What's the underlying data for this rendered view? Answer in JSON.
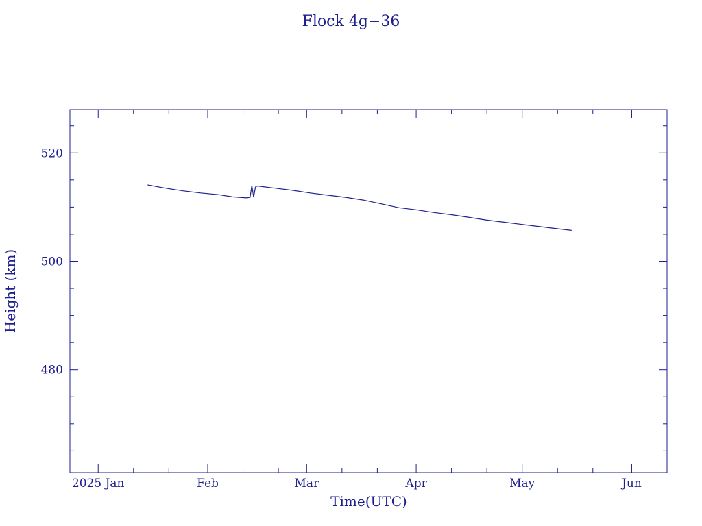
{
  "chart_data": {
    "type": "line",
    "title": "Flock 4g−36",
    "xlabel": "Time(UTC)",
    "ylabel": "Height (km)",
    "xlim": [
      "2024-12-24",
      "2025-06-11"
    ],
    "ylim": [
      461,
      528
    ],
    "x_ticks": [
      {
        "date": "2025-01-01",
        "label": "2025 Jan"
      },
      {
        "date": "2025-02-01",
        "label": "Feb"
      },
      {
        "date": "2025-03-01",
        "label": "Mar"
      },
      {
        "date": "2025-04-01",
        "label": "Apr"
      },
      {
        "date": "2025-05-01",
        "label": "May"
      },
      {
        "date": "2025-06-01",
        "label": "Jun"
      }
    ],
    "y_ticks": [
      480,
      500,
      520
    ],
    "grid": false,
    "color": "#1f1f8f",
    "series": [
      {
        "x": [
          "2025-01-15",
          "2025-01-20",
          "2025-01-25",
          "2025-01-30",
          "2025-02-04",
          "2025-02-08",
          "2025-02-12",
          "2025-02-13",
          "2025-02-13",
          "2025-02-14",
          "2025-02-14",
          "2025-02-15",
          "2025-02-20",
          "2025-02-25",
          "2025-03-02",
          "2025-03-07",
          "2025-03-12",
          "2025-03-17",
          "2025-03-22",
          "2025-03-27",
          "2025-04-01",
          "2025-04-06",
          "2025-04-11",
          "2025-04-16",
          "2025-04-21",
          "2025-04-26",
          "2025-05-01",
          "2025-05-06",
          "2025-05-11",
          "2025-05-15"
        ],
        "y": [
          514.1,
          513.5,
          513.0,
          512.6,
          512.3,
          511.9,
          511.7,
          511.8,
          514.0,
          511.8,
          513.7,
          513.9,
          513.5,
          513.1,
          512.6,
          512.2,
          511.8,
          511.3,
          510.6,
          509.9,
          509.5,
          509.0,
          508.6,
          508.1,
          507.6,
          507.2,
          506.8,
          506.4,
          506.0,
          505.7
        ]
      }
    ]
  }
}
